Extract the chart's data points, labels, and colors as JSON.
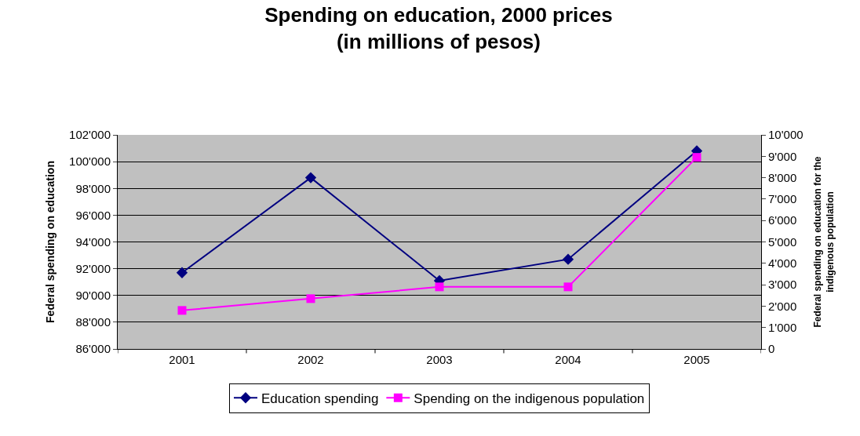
{
  "chart_data": {
    "type": "line",
    "title": "Spending on education, 2000 prices\n(in millions of pesos)",
    "ylabel": "Federal spending on education",
    "y2label": "Federal spending on education for the\nindigenous population",
    "categories": [
      "2001",
      "2002",
      "2003",
      "2004",
      "2005"
    ],
    "series": [
      {
        "name": "Education spending",
        "color": "#000080",
        "marker": "diamond",
        "values": [
          91700,
          98800,
          91100,
          92700,
          100800
        ]
      },
      {
        "name": "Spending on the indigenous population",
        "color": "#ff00ff",
        "marker": "square",
        "axis": "y2",
        "values": [
          1800,
          2350,
          2900,
          2900,
          8950
        ]
      }
    ],
    "ylim": [
      86000,
      102000
    ],
    "yticks": [
      {
        "value": 86000,
        "label": "86'000"
      },
      {
        "value": 88000,
        "label": "88'000"
      },
      {
        "value": 90000,
        "label": "90'000"
      },
      {
        "value": 92000,
        "label": "92'000"
      },
      {
        "value": 94000,
        "label": "94'000"
      },
      {
        "value": 96000,
        "label": "96'000"
      },
      {
        "value": 98000,
        "label": "98'000"
      },
      {
        "value": 100000,
        "label": "100'000"
      },
      {
        "value": 102000,
        "label": "102'000"
      }
    ],
    "y2lim": [
      0,
      10000
    ],
    "y2ticks": [
      0,
      {
        "value": 1000,
        "label": "1'000"
      },
      {
        "value": 2000,
        "label": "2'000"
      },
      {
        "value": 3000,
        "label": "3'000"
      },
      {
        "value": 4000,
        "label": "4'000"
      },
      {
        "value": 5000,
        "label": "5'000"
      },
      {
        "value": 6000,
        "label": "6'000"
      },
      {
        "value": 7000,
        "label": "7'000"
      },
      {
        "value": 8000,
        "label": "8'000"
      },
      {
        "value": 9000,
        "label": "9'000"
      },
      {
        "value": 10000,
        "label": "10'000"
      }
    ],
    "grid": "y",
    "legend": "bottom",
    "line_style": "solid"
  }
}
